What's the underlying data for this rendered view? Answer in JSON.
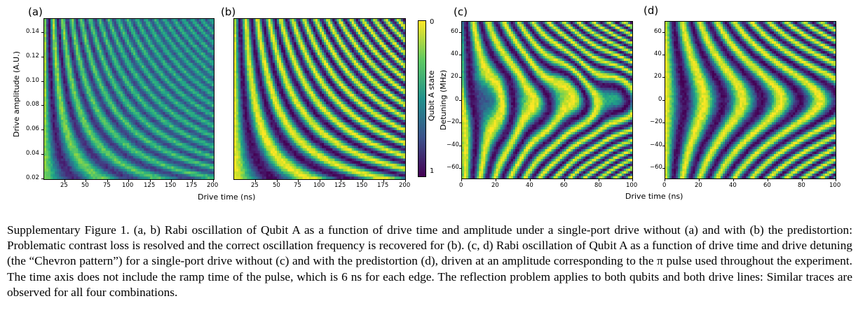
{
  "panels": {
    "a": {
      "label": "(a)"
    },
    "b": {
      "label": "(b)"
    },
    "c": {
      "label": "(c)"
    },
    "d": {
      "label": "(d)"
    }
  },
  "axes": {
    "ab_ylabel": "Drive amplitude (A.U.)",
    "ab_xlabel": "Drive time (ns)",
    "ab_yticks": [
      "0.14",
      "0.12",
      "0.10",
      "0.08",
      "0.06",
      "0.04",
      "0.02"
    ],
    "ab_xticks": [
      "25",
      "50",
      "75",
      "100",
      "125",
      "150",
      "175",
      "200"
    ],
    "colorbar_label": "Qubit A state",
    "colorbar_ticks": [
      "0",
      "1"
    ],
    "c_ylabel": "Detuning (MHz)",
    "cd_yticks": [
      "60",
      "40",
      "20",
      "0",
      "−20",
      "−40",
      "−60"
    ],
    "cd_xticks": [
      "0",
      "20",
      "40",
      "60",
      "80",
      "100"
    ],
    "cd_xlabel": "Drive time (ns)"
  },
  "colors": {
    "yellow": "#fde725",
    "green": "#5ec962",
    "teal": "#21918c",
    "blue": "#3b528b",
    "purple": "#440154"
  },
  "chart_data": [
    {
      "type": "heatmap",
      "panel": "a",
      "description_values": {
        "x_range": [
          0,
          200
        ],
        "y_range": [
          0.02,
          0.145
        ],
        "colorscale": "viridis"
      }
    },
    {
      "type": "heatmap",
      "panel": "b",
      "description_values": {
        "x_range": [
          0,
          200
        ],
        "y_range": [
          0.02,
          0.145
        ],
        "colorscale": "viridis"
      }
    },
    {
      "type": "heatmap",
      "panel": "c",
      "description_values": {
        "x_range": [
          0,
          100
        ],
        "y_range": [
          -70,
          70
        ],
        "colorscale": "viridis"
      }
    },
    {
      "type": "heatmap",
      "panel": "d",
      "description_values": {
        "x_range": [
          0,
          100
        ],
        "y_range": [
          -70,
          70
        ],
        "colorscale": "viridis"
      }
    }
  ],
  "caption": {
    "text": "Supplementary Figure 1. (a, b) Rabi oscillation of Qubit A as a function of drive time and amplitude under a single-port drive without (a) and with (b) the predistortion: Problematic contrast loss is resolved and the correct oscillation frequency is recovered for (b). (c, d) Rabi oscillation of Qubit A as a function of drive time and drive detuning (the “Chevron pattern”) for a single-port drive without (c) and with the predistortion (d), driven at an amplitude corresponding to the π pulse used throughout the experiment. The time axis does not include the ramp time of the pulse, which is 6 ns for each edge. The reflection problem applies to both qubits and both drive lines: Similar traces are observed for all four combinations."
  }
}
